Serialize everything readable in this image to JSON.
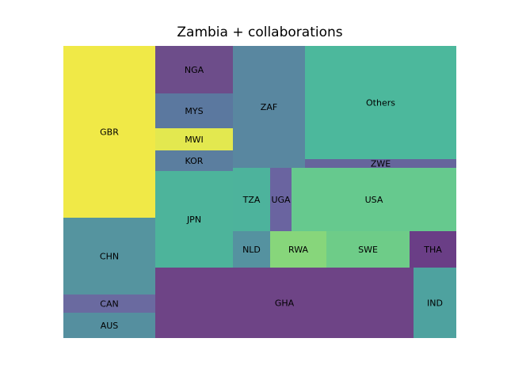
{
  "chart_data": {
    "type": "treemap",
    "title": "Zambia + collaborations",
    "items": [
      {
        "label": "GBR",
        "value": 218,
        "color": "#f0e947"
      },
      {
        "label": "CHN",
        "value": 98,
        "color": "#55949f"
      },
      {
        "label": "CAN",
        "value": 23,
        "color": "#6a6aa0"
      },
      {
        "label": "AUS",
        "value": 32,
        "color": "#558f9f"
      },
      {
        "label": "NGA",
        "value": 60,
        "color": "#6d4d8a"
      },
      {
        "label": "MYS",
        "value": 44,
        "color": "#5b789f"
      },
      {
        "label": "MWI",
        "value": 28,
        "color": "#e3e84f"
      },
      {
        "label": "KOR",
        "value": 26,
        "color": "#5b7e9f"
      },
      {
        "label": "JPN",
        "value": 120,
        "color": "#4db49b"
      },
      {
        "label": "ZAF",
        "value": 140,
        "color": "#5987a0"
      },
      {
        "label": "Others",
        "value": 262,
        "color": "#4cb89c"
      },
      {
        "label": "ZWE",
        "value": 21,
        "color": "#66659c"
      },
      {
        "label": "TZA",
        "value": 41,
        "color": "#4db39c"
      },
      {
        "label": "UGA",
        "value": 22,
        "color": "#6a64a0"
      },
      {
        "label": "USA",
        "value": 172,
        "color": "#66c98e"
      },
      {
        "label": "NLD",
        "value": 25,
        "color": "#5592a0"
      },
      {
        "label": "RWA",
        "value": 38,
        "color": "#87d67b"
      },
      {
        "label": "SWE",
        "value": 56,
        "color": "#6ecc88"
      },
      {
        "label": "THA",
        "value": 32,
        "color": "#6a3e86"
      },
      {
        "label": "GHA",
        "value": 289,
        "color": "#6e4486"
      },
      {
        "label": "IND",
        "value": 48,
        "color": "#4ea29f"
      }
    ]
  }
}
